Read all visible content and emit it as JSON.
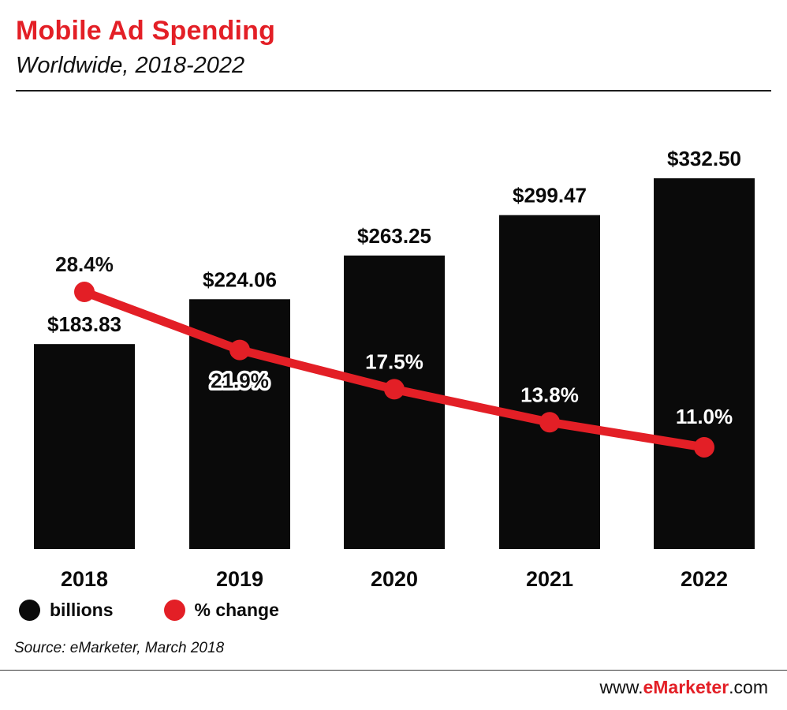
{
  "header": {
    "title": "Mobile Ad Spending",
    "subtitle": "Worldwide, 2018-2022"
  },
  "colors": {
    "accent": "#e31f26",
    "bar": "#0a0a0a"
  },
  "legend": [
    {
      "label": "billions",
      "color": "#0a0a0a"
    },
    {
      "label": "% change",
      "color": "#e31f26"
    }
  ],
  "source": "Source: eMarketer, March 2018",
  "footer": {
    "prefix": "www.",
    "brand": "eMarketer",
    "suffix": ".com"
  },
  "chart_data": {
    "type": "bar",
    "title": "Mobile Ad Spending",
    "subtitle": "Worldwide, 2018-2022",
    "categories": [
      "2018",
      "2019",
      "2020",
      "2021",
      "2022"
    ],
    "series": [
      {
        "name": "billions",
        "type": "bar",
        "values": [
          183.83,
          224.06,
          263.25,
          299.47,
          332.5
        ],
        "labels": [
          "$183.83",
          "$224.06",
          "$263.25",
          "$299.47",
          "$332.50"
        ],
        "color": "#0a0a0a"
      },
      {
        "name": "% change",
        "type": "line",
        "values": [
          28.4,
          21.9,
          17.5,
          13.8,
          11.0
        ],
        "labels": [
          "28.4%",
          "21.9%",
          "17.5%",
          "13.8%",
          "11.0%"
        ],
        "color": "#e31f26"
      }
    ],
    "xlabel": "",
    "ylabel": "",
    "grid": false,
    "legend_position": "bottom-left"
  }
}
